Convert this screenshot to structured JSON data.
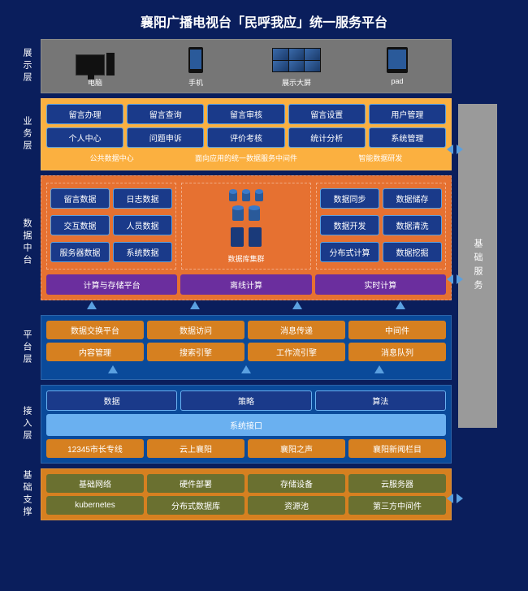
{
  "title": "襄阳广播电视台「民呼我应」统一服务平台",
  "colors": {
    "page_bg": "#0a1e5c",
    "display_bg": "#767676",
    "business_bg": "#fbb040",
    "data_bg": "#e67131",
    "platform_bg": "#0a4a9a",
    "access_bg": "#0a4a9a",
    "infra_bg": "#d68020",
    "box_blue": "#1a3a8a",
    "box_orange": "#d68020",
    "box_purple": "#6b2e9e",
    "box_olive": "#6a7030",
    "box_lightblue": "#6ab0f0",
    "sidebar_bg": "#9a9a9a",
    "arrow": "#5aa0e0"
  },
  "sidebar": {
    "label": "基础服务"
  },
  "layers": {
    "display": {
      "label": "展示层",
      "devices": [
        "电脑",
        "手机",
        "展示大屏",
        "pad"
      ]
    },
    "business": {
      "label": "业务层",
      "row1": [
        "留言办理",
        "留言查询",
        "留言审核",
        "留言设置",
        "用户管理"
      ],
      "row2": [
        "个人中心",
        "问题申诉",
        "评价考核",
        "统计分析",
        "系统管理"
      ],
      "sub": [
        "公共数据中心",
        "面向应用的统一数据服务中间件",
        "智能数据研发"
      ]
    },
    "data": {
      "label": "数据中台",
      "left_rows": [
        [
          "留言数据",
          "日志数据"
        ],
        [
          "交互数据",
          "人员数据"
        ],
        [
          "服务器数据",
          "系统数据"
        ]
      ],
      "left_caption": "计算与存储平台",
      "center_caption": "数据库集群",
      "right_rows": [
        [
          "数据同步",
          "数据储存"
        ],
        [
          "数据开发",
          "数据清洗"
        ],
        [
          "分布式计算",
          "数据挖掘"
        ]
      ],
      "purple": [
        "离线计算",
        "实时计算"
      ]
    },
    "platform": {
      "label": "平台层",
      "row1": [
        "数据交换平台",
        "数据访问",
        "消息传递",
        "中间件"
      ],
      "row2": [
        "内容管理",
        "搜索引擎",
        "工作流引擎",
        "消息队列"
      ]
    },
    "access": {
      "label": "接入层",
      "top": [
        "数据",
        "策略",
        "算法"
      ],
      "wide": "系统接口",
      "bottom": [
        "12345市长专线",
        "云上襄阳",
        "襄阳之声",
        "襄阳新闻栏目"
      ]
    },
    "infra": {
      "label": "基础支撑",
      "row1": [
        "基础网络",
        "硬件部署",
        "存储设备",
        "云服务器"
      ],
      "row2": [
        "kubernetes",
        "分布式数据库",
        "资源池",
        "第三方中间件"
      ]
    }
  }
}
